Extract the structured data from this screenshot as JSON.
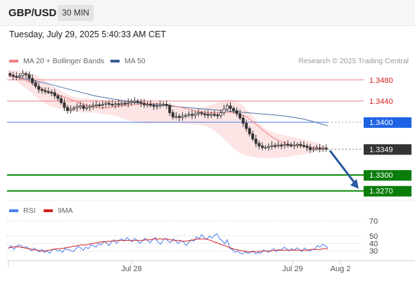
{
  "header": {
    "symbol": "GBP/USD",
    "timeframe": "30 MIN",
    "datetime": "Tuesday, July 29, 2025 5:40:33 AM CET"
  },
  "legend": {
    "ma20_label": "MA 20 + Bollinger Bands",
    "ma50_label": "MA 50",
    "credit": "Research © 2025 Trading Central",
    "rsi_label": "RSI",
    "rsi_ma_label": "9MA"
  },
  "colors": {
    "ma20": "#f08080",
    "ma50": "#4a6fa5",
    "band_fill": "#fde0e0",
    "candle_up": "#ffffff",
    "candle_down": "#333333",
    "resistance": "#e88080",
    "resistance_text": "#d42020",
    "pivot": "#4a7ff0",
    "support": "#0a8a0a",
    "current": "#333333",
    "arrow": "#2a5aa0",
    "rsi": "#4a7ff0",
    "rsi_ma": "#d42020"
  },
  "chart_data": [
    {
      "type": "candlestick",
      "title": "GBP/USD 30 MIN",
      "ylim": [
        1.3255,
        1.3505
      ],
      "x_ticks": [
        "Jul 28",
        "Jul 29",
        "Aug 2"
      ],
      "levels": [
        {
          "label": "1.3480",
          "value": 1.348,
          "kind": "resistance"
        },
        {
          "label": "1.3440",
          "value": 1.344,
          "kind": "resistance"
        },
        {
          "label": "1.3400",
          "value": 1.34,
          "kind": "pivot"
        },
        {
          "label": "1.3349",
          "value": 1.3349,
          "kind": "current"
        },
        {
          "label": "1.3300",
          "value": 1.33,
          "kind": "support"
        },
        {
          "label": "1.3270",
          "value": 1.327,
          "kind": "support"
        }
      ],
      "forecast_arrow": {
        "from": 1.3349,
        "to": 1.3274
      },
      "close": [
        1.3489,
        1.3487,
        1.3486,
        1.3488,
        1.3492,
        1.349,
        1.3483,
        1.3475,
        1.3468,
        1.3462,
        1.346,
        1.3458,
        1.3457,
        1.3456,
        1.345,
        1.3445,
        1.3437,
        1.3428,
        1.3422,
        1.3425,
        1.3427,
        1.343,
        1.3431,
        1.3426,
        1.3428,
        1.343,
        1.3432,
        1.3433,
        1.3432,
        1.3434,
        1.3436,
        1.3434,
        1.3433,
        1.3435,
        1.3434,
        1.3436,
        1.3435,
        1.3437,
        1.3439,
        1.344,
        1.3438,
        1.3436,
        1.3433,
        1.3434,
        1.3432,
        1.343,
        1.3431,
        1.3433,
        1.3434,
        1.3432,
        1.3418,
        1.341,
        1.3411,
        1.3409,
        1.3412,
        1.3413,
        1.3415,
        1.3413,
        1.3416,
        1.3418,
        1.3416,
        1.3415,
        1.3413,
        1.3415,
        1.3414,
        1.3413,
        1.3418,
        1.3425,
        1.3431,
        1.3426,
        1.3422,
        1.3416,
        1.3408,
        1.3398,
        1.3388,
        1.3378,
        1.3368,
        1.336,
        1.3355,
        1.3352,
        1.3353,
        1.3354,
        1.3356,
        1.3355,
        1.3357,
        1.3356,
        1.3358,
        1.3357,
        1.3356,
        1.3357,
        1.3358,
        1.3356,
        1.3355,
        1.3352,
        1.3348,
        1.335,
        1.3351,
        1.335,
        1.3351,
        1.3349
      ],
      "ma20": [
        1.3488,
        1.3486,
        1.3484,
        1.348,
        1.3475,
        1.347,
        1.3465,
        1.346,
        1.3455,
        1.3452,
        1.3449,
        1.3445,
        1.3441,
        1.3437,
        1.3433,
        1.343,
        1.3428,
        1.3427,
        1.3427,
        1.3428,
        1.343,
        1.3431,
        1.3432,
        1.3433,
        1.3434,
        1.3435,
        1.3435,
        1.3435,
        1.3435,
        1.3434,
        1.3432,
        1.343,
        1.3428,
        1.3425,
        1.3423,
        1.342,
        1.3419,
        1.3418,
        1.3418,
        1.3419,
        1.3419,
        1.3419,
        1.3418,
        1.3415,
        1.341,
        1.3402,
        1.3394,
        1.3385,
        1.3377,
        1.337,
        1.3365,
        1.3361,
        1.3358,
        1.3356,
        1.3355,
        1.3354,
        1.3353,
        1.3352,
        1.3351,
        1.335
      ],
      "ma50": [
        1.3488,
        1.3484,
        1.3479,
        1.3474,
        1.3468,
        1.3462,
        1.3456,
        1.345,
        1.3446,
        1.3442,
        1.3438,
        1.3435,
        1.3433,
        1.3431,
        1.3429,
        1.3427,
        1.3425,
        1.3423,
        1.3421,
        1.3419,
        1.3417,
        1.3415,
        1.3413,
        1.341,
        1.3406,
        1.34,
        1.3393
      ],
      "bb_upper": [
        1.35,
        1.3498,
        1.3496,
        1.3493,
        1.3488,
        1.348,
        1.347,
        1.3462,
        1.3455,
        1.3449,
        1.3445,
        1.3445,
        1.3444,
        1.3442,
        1.3441,
        1.344,
        1.344,
        1.3441,
        1.3441,
        1.3442,
        1.344,
        1.3437,
        1.3432,
        1.343,
        1.3428,
        1.3427,
        1.3426,
        1.3426,
        1.343,
        1.3435,
        1.344,
        1.3443,
        1.3441,
        1.3432,
        1.3418,
        1.3403,
        1.339,
        1.3382,
        1.3378,
        1.3375,
        1.3372,
        1.3369,
        1.3366,
        1.3363,
        1.3358,
        1.3352
      ],
      "bb_lower": [
        1.3484,
        1.3478,
        1.3468,
        1.3458,
        1.3447,
        1.3437,
        1.343,
        1.3426,
        1.3423,
        1.342,
        1.3419,
        1.3418,
        1.3418,
        1.3416,
        1.3414,
        1.3412,
        1.3408,
        1.3403,
        1.34,
        1.3398,
        1.3397,
        1.3398,
        1.3398,
        1.3398,
        1.3398,
        1.3397,
        1.3396,
        1.3395,
        1.3392,
        1.3385,
        1.3373,
        1.3359,
        1.3347,
        1.3339,
        1.3335,
        1.3333,
        1.3332,
        1.3332,
        1.3333,
        1.3334,
        1.3336,
        1.3338,
        1.334,
        1.3343,
        1.3346,
        1.3348
      ]
    },
    {
      "type": "line",
      "title": "RSI",
      "ylim": [
        18,
        78
      ],
      "y_ticks": [
        70,
        50,
        40,
        30
      ],
      "series": [
        {
          "name": "RSI",
          "values": [
            33,
            37,
            32,
            35,
            38,
            37,
            34,
            36,
            33,
            30,
            34,
            31,
            29,
            32,
            28,
            30,
            27,
            31,
            33,
            30,
            31,
            28,
            33,
            32,
            31,
            29,
            32,
            36,
            34,
            31,
            35,
            33,
            38,
            37,
            35,
            40,
            38,
            43,
            41,
            37,
            42,
            45,
            40,
            44,
            46,
            43,
            48,
            45,
            42,
            47,
            44,
            40,
            43,
            47,
            44,
            41,
            45,
            48,
            42,
            39,
            44,
            47,
            43,
            41,
            46,
            43,
            40,
            44,
            42,
            37,
            41,
            45,
            43,
            49,
            46,
            52,
            48,
            45,
            50,
            47,
            51,
            53,
            46,
            44,
            39,
            45,
            33,
            32,
            28,
            30,
            27,
            26,
            29,
            27,
            28,
            30,
            26,
            28,
            27,
            31,
            30,
            28,
            31,
            33,
            29,
            32,
            31,
            35,
            33,
            30,
            33,
            31,
            34,
            32,
            29,
            34,
            31,
            30,
            32,
            33,
            37,
            35,
            39,
            37,
            34
          ]
        },
        {
          "name": "9MA",
          "values": [
            34,
            35,
            36,
            35,
            34,
            33,
            32,
            31,
            30,
            30,
            31,
            32,
            33,
            33,
            34,
            35,
            36,
            37,
            38,
            38,
            39,
            40,
            41,
            42,
            42,
            43,
            43,
            44,
            44,
            44,
            44,
            44,
            44,
            44,
            45,
            45,
            46,
            46,
            46,
            46,
            45,
            44,
            44,
            43,
            43,
            44,
            45,
            46,
            46,
            46,
            44,
            42,
            40,
            38,
            36,
            34,
            32,
            31,
            30,
            29,
            29,
            29,
            29,
            30,
            30,
            30,
            31,
            31,
            31,
            31,
            31,
            31,
            31,
            31,
            31,
            32,
            32,
            32,
            33,
            33
          ]
        }
      ]
    }
  ]
}
